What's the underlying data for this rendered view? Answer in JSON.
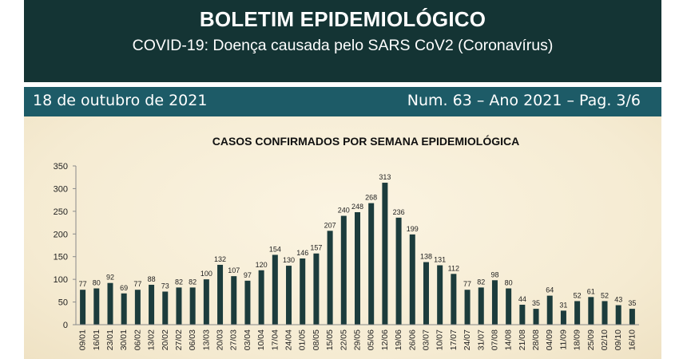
{
  "header": {
    "title": "BOLETIM EPIDEMIOLÓGICO",
    "subtitle": "COVID-19: Doença  causada pelo SARS CoV2 (Coronavírus)"
  },
  "info_bar": {
    "date": "18 de outubro de 2021",
    "issue": "Num. 63 – Ano 2021 – Pag. 3/6"
  },
  "colors": {
    "header_bg": "#143434",
    "info_bar_bg": "#1d5b67",
    "bar": "#1c3c3c",
    "panel_bg": "#f7efd9"
  },
  "chart_data": {
    "type": "bar",
    "title": "CASOS CONFIRMADOS POR SEMANA EPIDEMIOLÓGICA",
    "xlabel": "",
    "ylabel": "",
    "ylim": [
      0,
      350
    ],
    "yticks": [
      0,
      50,
      100,
      150,
      200,
      250,
      300,
      350
    ],
    "grid": false,
    "legend": "none",
    "categories": [
      "09/01",
      "16/01",
      "23/01",
      "30/01",
      "06/02",
      "13/02",
      "20/02",
      "27/02",
      "06/03",
      "13/03",
      "20/03",
      "27/03",
      "03/04",
      "10/04",
      "17/04",
      "24/04",
      "01/05",
      "08/05",
      "15/05",
      "22/05",
      "29/05",
      "05/06",
      "12/06",
      "19/06",
      "26/06",
      "03/07",
      "10/07",
      "17/07",
      "24/07",
      "31/07",
      "07/08",
      "14/08",
      "21/08",
      "28/08",
      "04/09",
      "11/09",
      "18/09",
      "25/09",
      "02/10",
      "09/10",
      "16/10"
    ],
    "values": [
      77,
      80,
      92,
      69,
      77,
      88,
      73,
      82,
      82,
      100,
      132,
      107,
      97,
      120,
      154,
      130,
      146,
      157,
      207,
      240,
      248,
      268,
      313,
      236,
      199,
      138,
      131,
      112,
      77,
      82,
      98,
      80,
      44,
      35,
      64,
      31,
      52,
      61,
      52,
      43,
      35
    ]
  }
}
